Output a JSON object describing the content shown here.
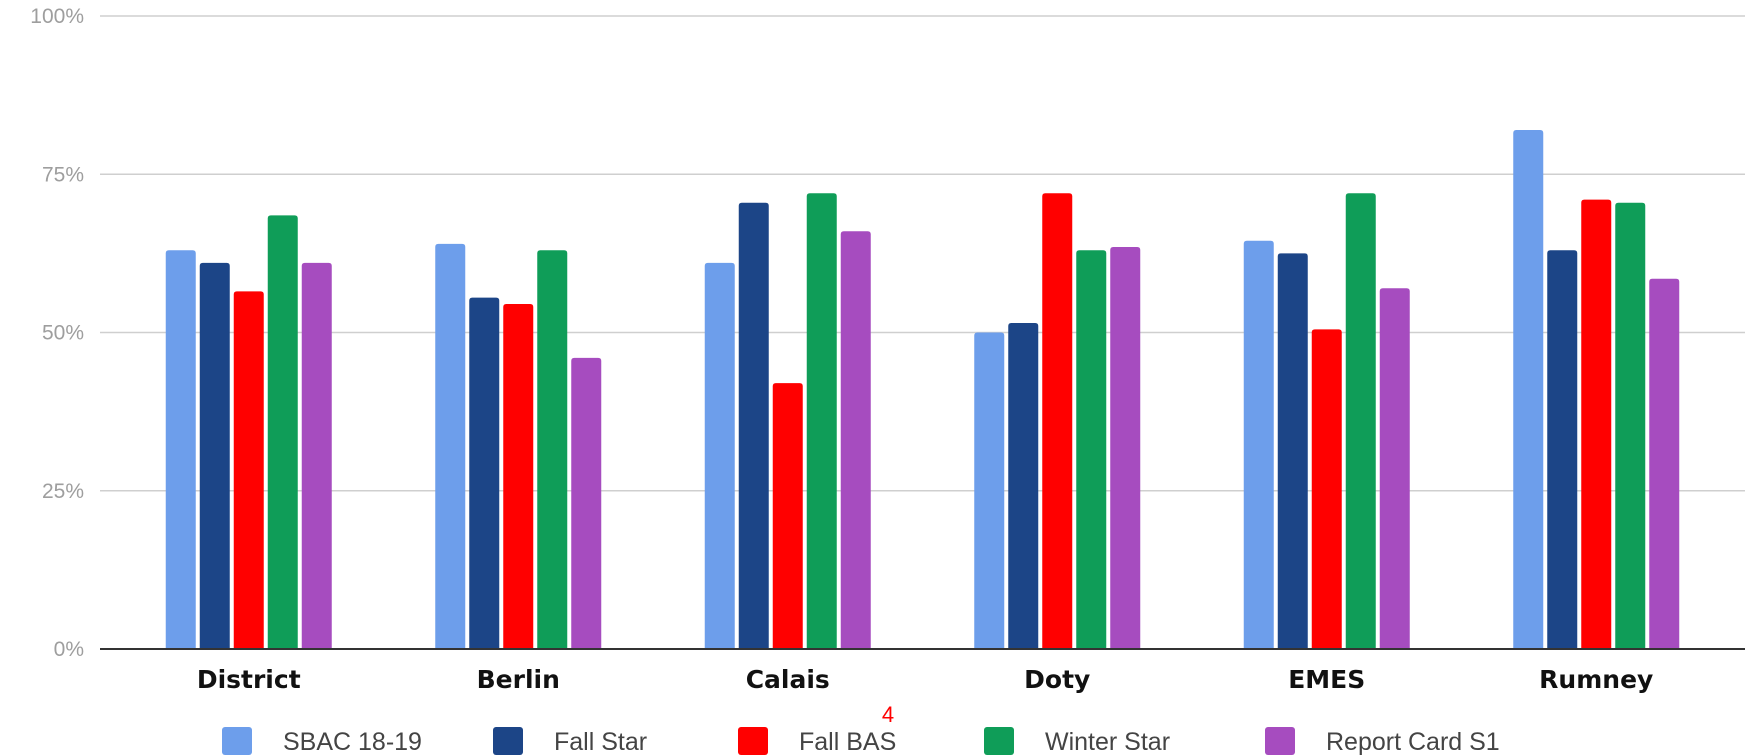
{
  "chart_data": {
    "type": "bar",
    "categories": [
      "District",
      "Berlin",
      "Calais",
      "Doty",
      "EMES",
      "Rumney"
    ],
    "series": [
      {
        "name": "SBAC 18-19",
        "color": "#6d9eeb",
        "values": [
          63,
          64,
          61,
          50,
          64.5,
          82
        ]
      },
      {
        "name": "Fall Star",
        "color": "#1c4587",
        "values": [
          61,
          55.5,
          70.5,
          51.5,
          62.5,
          63
        ]
      },
      {
        "name": "Fall BAS",
        "color": "#ff0000",
        "values": [
          56.5,
          54.5,
          42,
          72,
          50.5,
          71
        ]
      },
      {
        "name": "Winter Star",
        "color": "#0f9d58",
        "values": [
          68.5,
          63,
          72,
          63,
          72,
          70.5
        ]
      },
      {
        "name": "Report Card S1",
        "color": "#a64cbf",
        "values": [
          61,
          46,
          66,
          63.5,
          57,
          58.5
        ]
      }
    ],
    "ylim": [
      0,
      100
    ],
    "yticks": [
      0,
      25,
      50,
      75,
      100
    ],
    "ytick_labels": [
      "0%",
      "25%",
      "50%",
      "75%",
      "100%"
    ],
    "grid": true,
    "legend": "bottom",
    "title": "",
    "xlabel": "",
    "ylabel": ""
  },
  "page_number": "4"
}
